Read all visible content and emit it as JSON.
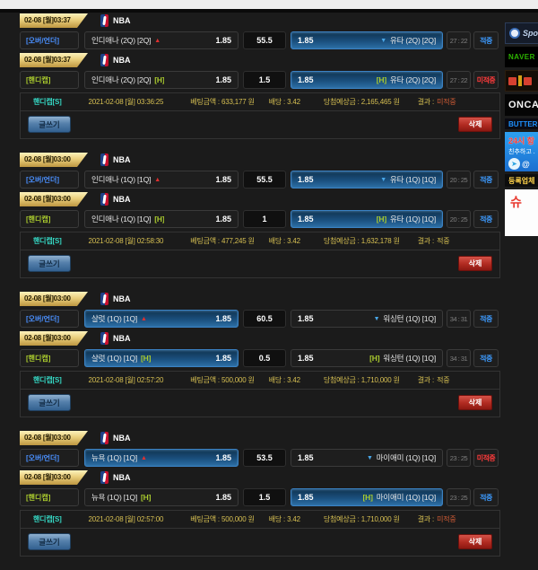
{
  "buttons": {
    "write": "글쓰기",
    "delete": "삭제"
  },
  "groups": [
    {
      "rows": [
        {
          "date": "02-08 [월]03:37",
          "league": "NBA",
          "bet_type": "[오버/언더]",
          "home": {
            "name": "인디애나 (2Q) [2Q]",
            "marker": "▲",
            "odds": "1.85"
          },
          "point": "55.5",
          "away": {
            "marker": "▼",
            "name": "유타 (2Q) [2Q]",
            "odds": "1.85"
          },
          "score": "27 : 22",
          "status": "적중"
        },
        {
          "date": "02-08 [월]03:37",
          "league": "NBA",
          "bet_type": "[핸디캡]",
          "home": {
            "name": "인디애나 (2Q) [2Q]",
            "marker": "[H]",
            "odds": "1.85"
          },
          "point": "1.5",
          "away": {
            "marker": "[H]",
            "name": "유타 (2Q) [2Q]",
            "odds": "1.85"
          },
          "score": "27 : 22",
          "status": "미적중"
        }
      ],
      "summary": {
        "type": "핸디캡[S]",
        "datetime": "2021-02-08 [월] 03:36:25",
        "amount": "베팅금액 : 633,177 원",
        "odds": "배당 : 3.42",
        "expected": "당첨예상금 : 2,165,465 원",
        "result_label": "결과 :",
        "result": "미적중"
      }
    },
    {
      "rows": [
        {
          "date": "02-08 [월]03:00",
          "league": "NBA",
          "bet_type": "[오버/언더]",
          "home": {
            "name": "인디애나 (1Q) [1Q]",
            "marker": "▲",
            "odds": "1.85"
          },
          "point": "55.5",
          "away": {
            "marker": "▼",
            "name": "유타 (1Q) [1Q]",
            "odds": "1.85"
          },
          "score": "20 : 25",
          "status": "적중"
        },
        {
          "date": "02-08 [월]03:00",
          "league": "NBA",
          "bet_type": "[핸디캡]",
          "home": {
            "name": "인디애나 (1Q) [1Q]",
            "marker": "[H]",
            "odds": "1.85"
          },
          "point": "1",
          "away": {
            "marker": "[H]",
            "name": "유타 (1Q) [1Q]",
            "odds": "1.85"
          },
          "score": "20 : 25",
          "status": "적중"
        }
      ],
      "summary": {
        "type": "핸디캡[S]",
        "datetime": "2021-02-08 [월] 02:58:30",
        "amount": "베팅금액 : 477,245 원",
        "odds": "배당 : 3.42",
        "expected": "당첨예상금 : 1,632,178 원",
        "result_label": "결과 :",
        "result": "적중"
      }
    },
    {
      "rows": [
        {
          "date": "02-08 [월]03:00",
          "league": "NBA",
          "bet_type": "[오버/언더]",
          "home": {
            "name": "샬럿 (1Q) [1Q]",
            "marker": "▲",
            "odds": "1.85"
          },
          "point": "60.5",
          "away": {
            "marker": "▼",
            "name": "워싱턴 (1Q) [1Q]",
            "odds": "1.85"
          },
          "score": "34 : 31",
          "status": "적중"
        },
        {
          "date": "02-08 [월]03:00",
          "league": "NBA",
          "bet_type": "[핸디캡]",
          "home": {
            "name": "샬럿 (1Q) [1Q]",
            "marker": "[H]",
            "odds": "1.85"
          },
          "point": "0.5",
          "away": {
            "marker": "[H]",
            "name": "워싱턴 (1Q) [1Q]",
            "odds": "1.85"
          },
          "score": "34 : 31",
          "status": "적중"
        }
      ],
      "summary": {
        "type": "핸디캡[S]",
        "datetime": "2021-02-08 [월] 02:57:20",
        "amount": "베팅금액 : 500,000 원",
        "odds": "배당 : 3.42",
        "expected": "당첨예상금 : 1,710,000 원",
        "result_label": "결과 :",
        "result": "적중"
      }
    },
    {
      "rows": [
        {
          "date": "02-08 [월]03:00",
          "league": "NBA",
          "bet_type": "[오버/언더]",
          "home": {
            "name": "뉴욕 (1Q) [1Q]",
            "marker": "▲",
            "odds": "1.85"
          },
          "point": "53.5",
          "away": {
            "marker": "▼",
            "name": "마이애미 (1Q) [1Q]",
            "odds": "1.85"
          },
          "score": "23 : 25",
          "status": "미적중"
        },
        {
          "date": "02-08 [월]03:00",
          "league": "NBA",
          "bet_type": "[핸디캡]",
          "home": {
            "name": "뉴욕 (1Q) [1Q]",
            "marker": "[H]",
            "odds": "1.85"
          },
          "point": "1.5",
          "away": {
            "marker": "[H]",
            "name": "마이애미 (1Q) [1Q]",
            "odds": "1.85"
          },
          "score": "23 : 25",
          "status": "적중"
        }
      ],
      "summary": {
        "type": "핸디캡[S]",
        "datetime": "2021-02-08 [월] 02:57:00",
        "amount": "베팅금액 : 500,000 원",
        "odds": "배당 : 3.42",
        "expected": "당첨예상금 : 1,710,000 원",
        "result_label": "결과 :",
        "result": "미적중"
      }
    }
  ],
  "sidebar": {
    "sports": "Spo",
    "naver": "NAVER",
    "onca": "ONCA",
    "butter": "BUTTER",
    "telegram_line1": "24시 항",
    "telegram_line2": "친추하고 .",
    "telegram_at": "@",
    "registered": "등록업체",
    "white_logo": "슈"
  }
}
